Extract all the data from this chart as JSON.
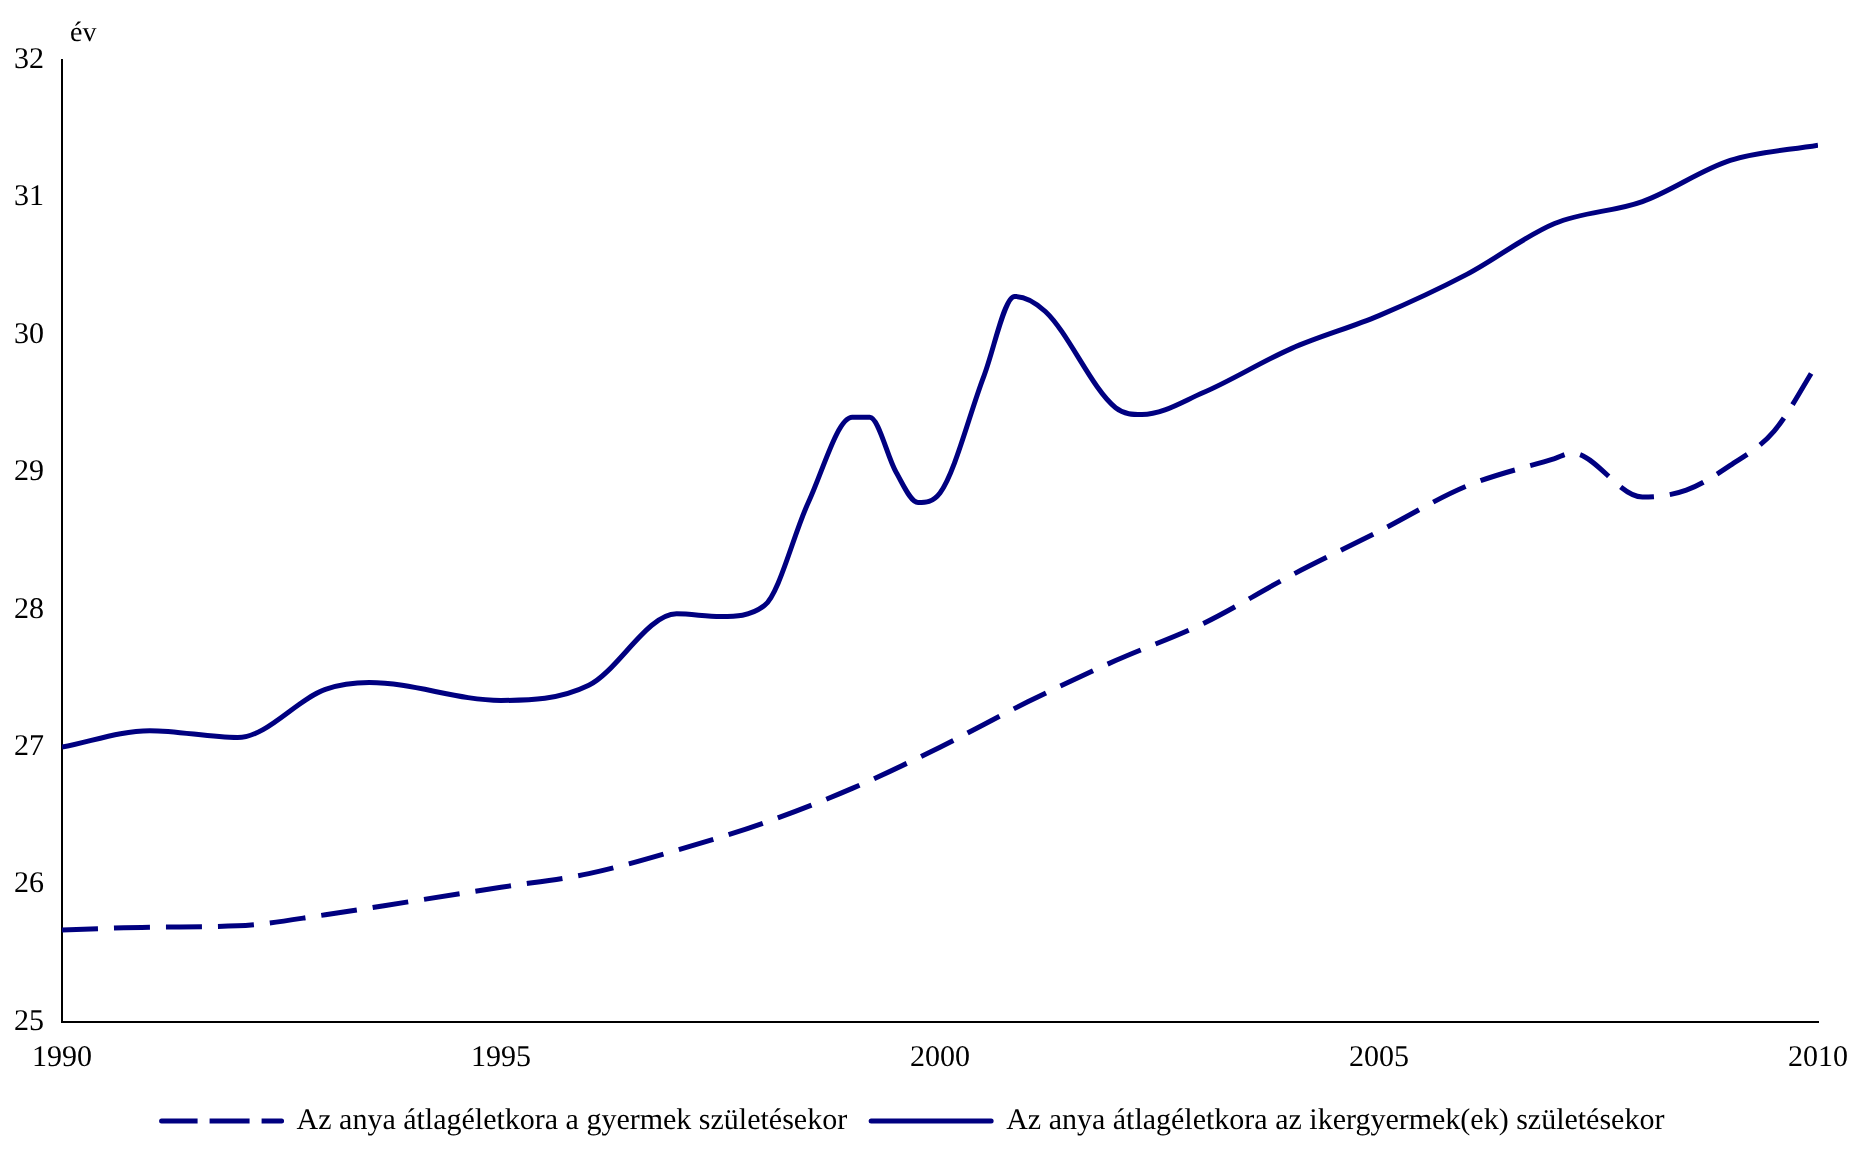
{
  "chart_data": {
    "type": "line",
    "ylabel": "év",
    "xlim": [
      1990,
      2010
    ],
    "xticks": [
      1990,
      1995,
      2000,
      2005,
      2010
    ],
    "ylim": [
      25,
      32
    ],
    "yticks": [
      25,
      26,
      27,
      28,
      29,
      30,
      31,
      32
    ],
    "grid": false,
    "legend": "bottom",
    "marker": "none",
    "series": [
      {
        "name": "Az anya átlagéletkora a gyermek születésekor",
        "color": "#000080",
        "line_style": "dashed",
        "x": [
          1990,
          1991,
          1992,
          1993,
          1994,
          1995,
          1996,
          1997,
          1998,
          1999,
          2000,
          2001,
          2002,
          2003,
          2004,
          2005,
          2006,
          2007,
          2007.2,
          2008,
          2008.5,
          2009,
          2009.5,
          2010
        ],
        "values": [
          25.67,
          25.69,
          25.7,
          25.78,
          25.88,
          25.98,
          26.08,
          26.25,
          26.45,
          26.7,
          27.0,
          27.33,
          27.63,
          27.9,
          28.25,
          28.57,
          28.9,
          29.1,
          29.14,
          28.82,
          28.87,
          29.05,
          29.3,
          29.8
        ]
      },
      {
        "name": "Az anya átlagéletkora az ikergyermek(ek) születésekor",
        "color": "#000080",
        "line_style": "solid",
        "x": [
          1990,
          1991,
          1992,
          1993,
          1993.5,
          1995,
          1996,
          1997,
          1997.5,
          1998,
          1998.5,
          1999,
          1999.2,
          1999.5,
          1999.75,
          2000,
          2000.5,
          2000.85,
          2001.2,
          2002,
          2002.3,
          2003,
          2004,
          2005,
          2006,
          2007,
          2008,
          2009,
          2010
        ],
        "values": [
          27.0,
          27.12,
          27.07,
          27.42,
          27.47,
          27.34,
          27.45,
          27.97,
          27.95,
          28.03,
          28.78,
          29.4,
          29.4,
          29.0,
          28.78,
          28.85,
          29.7,
          30.28,
          30.17,
          29.47,
          29.42,
          29.58,
          29.9,
          30.14,
          30.44,
          30.81,
          30.97,
          31.27,
          31.38
        ]
      }
    ]
  }
}
